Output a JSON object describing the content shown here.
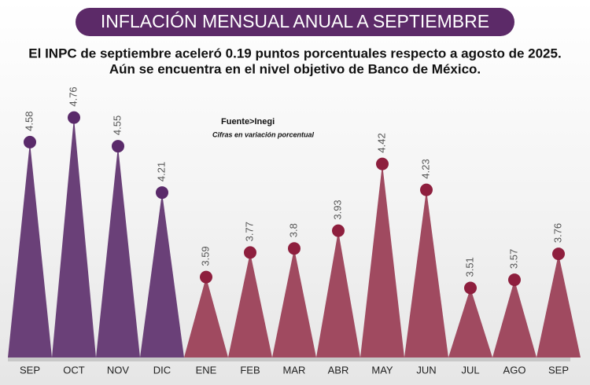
{
  "chart_data": {
    "type": "spike",
    "title": "INFLACIÓN MENSUAL ANUAL A SEPTIEMBRE",
    "subtitle": [
      "El INPC de septiembre aceleró 0.19 puntos porcentuales respecto a agosto de 2025.",
      "Aún se encuentra en el nivel objetivo de Banco de México."
    ],
    "source": "Fuente>Inegi",
    "note": "Cifras en variación porcentual",
    "categories": [
      "SEP",
      "OCT",
      "NOV",
      "DIC",
      "ENE",
      "FEB",
      "MAR",
      "ABR",
      "MAY",
      "JUN",
      "JUL",
      "AGO",
      "SEP"
    ],
    "values": [
      4.58,
      4.76,
      4.55,
      4.21,
      3.59,
      3.77,
      3.8,
      3.93,
      4.42,
      4.23,
      3.51,
      3.57,
      3.76
    ],
    "colors": [
      "#6a4078",
      "#6a4078",
      "#6a4078",
      "#6a4078",
      "#a04a60",
      "#a04a60",
      "#a04a60",
      "#a04a60",
      "#a04a60",
      "#a04a60",
      "#a04a60",
      "#a04a60",
      "#a04a60"
    ],
    "dot_colors": [
      "#5a2a6a",
      "#5a2a6a",
      "#5a2a6a",
      "#5a2a6a",
      "#8e1f3e",
      "#8e1f3e",
      "#8e1f3e",
      "#8e1f3e",
      "#8e1f3e",
      "#8e1f3e",
      "#8e1f3e",
      "#8e1f3e",
      "#8e1f3e"
    ],
    "ylim": [
      3,
      5
    ]
  }
}
